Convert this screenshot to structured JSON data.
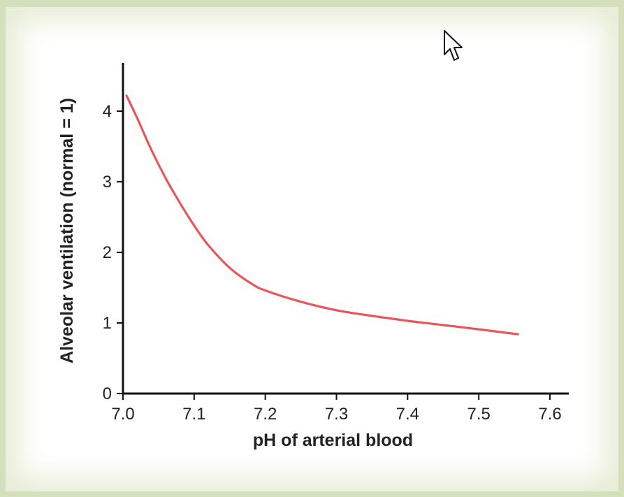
{
  "chart_data": {
    "type": "line",
    "title": "",
    "xlabel": "pH of arterial blood",
    "ylabel": "Alveolar ventilation (normal = 1)",
    "xlim": [
      7.0,
      7.62
    ],
    "ylim": [
      0,
      4.7
    ],
    "x_ticks": [
      "7.0",
      "7.1",
      "7.2",
      "7.3",
      "7.4",
      "7.5",
      "7.6"
    ],
    "y_ticks": [
      "0",
      "1",
      "2",
      "3",
      "4"
    ],
    "grid": false,
    "legend": "none",
    "series": [
      {
        "color": "#e8565b",
        "x": [
          7.005,
          7.02,
          7.04,
          7.06,
          7.08,
          7.1,
          7.12,
          7.15,
          7.18,
          7.2,
          7.25,
          7.3,
          7.35,
          7.4,
          7.45,
          7.5,
          7.555
        ],
        "y": [
          4.22,
          3.9,
          3.45,
          3.05,
          2.7,
          2.38,
          2.1,
          1.78,
          1.56,
          1.46,
          1.3,
          1.18,
          1.1,
          1.03,
          0.97,
          0.91,
          0.84
        ]
      }
    ]
  },
  "cursor": {
    "icon": "mouse-pointer-icon"
  }
}
